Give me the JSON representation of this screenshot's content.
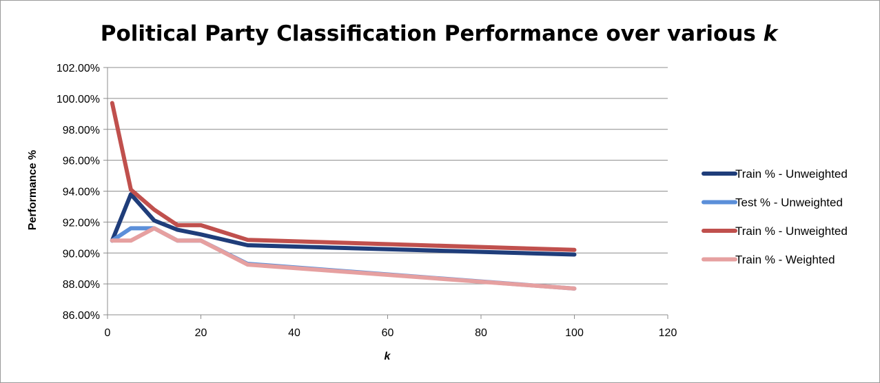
{
  "chart_data": {
    "type": "line",
    "title": "Political Party Classification Performance over various ",
    "title_k": "k",
    "xlabel": "k",
    "ylabel": "Performance %",
    "xlim": [
      0,
      120
    ],
    "ylim": [
      86,
      102
    ],
    "x_ticks": [
      "0",
      "20",
      "40",
      "60",
      "80",
      "100",
      "120"
    ],
    "y_ticks": [
      "86.00%",
      "88.00%",
      "90.00%",
      "92.00%",
      "94.00%",
      "96.00%",
      "98.00%",
      "100.00%",
      "102.00%"
    ],
    "grid": "horizontal",
    "legend_position": "right",
    "x": [
      1,
      5,
      10,
      15,
      20,
      30,
      100
    ],
    "series": [
      {
        "name": "Train % - Unweighted",
        "color": "#1f3d7a",
        "values": [
          90.8,
          93.8,
          92.1,
          91.5,
          91.2,
          90.5,
          89.9
        ]
      },
      {
        "name": "Test % - Unweighted",
        "color": "#5b8fd9",
        "values": [
          90.8,
          91.6,
          91.6,
          90.8,
          90.8,
          89.3,
          87.7
        ]
      },
      {
        "name": "Train % - Unweighted",
        "color": "#c0504d",
        "values": [
          99.7,
          94.1,
          92.8,
          91.8,
          91.8,
          90.85,
          90.2
        ]
      },
      {
        "name": "Train % - Weighted",
        "color": "#e6a0a0",
        "values": [
          90.8,
          90.8,
          91.6,
          90.8,
          90.8,
          89.25,
          87.7
        ]
      }
    ]
  }
}
